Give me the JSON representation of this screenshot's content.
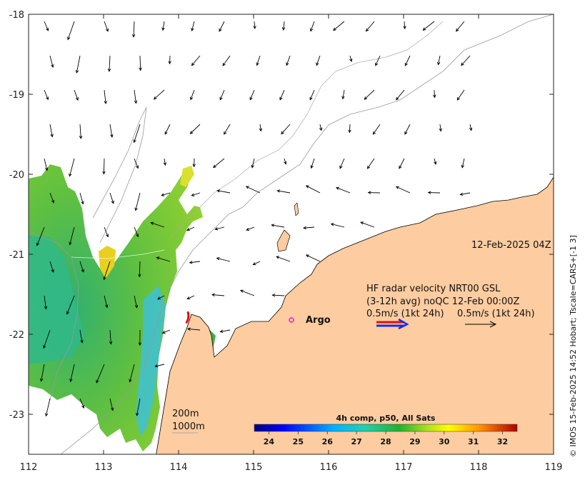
{
  "map": {
    "timestamp": "12-Feb-2025 04Z",
    "credit": "© IMOS 15-Feb-2025 14:52 Hobart; Tscale=CARS+[-1 3]",
    "x_axis": {
      "range": [
        112,
        119
      ],
      "ticks": [
        "112",
        "113",
        "114",
        "115",
        "116",
        "117",
        "118",
        "119"
      ]
    },
    "y_axis": {
      "range": [
        -23.5,
        -18
      ],
      "ticks": [
        "-18",
        "-19",
        "-20",
        "-21",
        "-22",
        "-23"
      ]
    },
    "legend": {
      "line1": "HF radar velocity  NRT00 GSL",
      "line2": "(3-12h avg) noQC 12-Feb 00:00Z",
      "scale_left": "0.5m/s (1kt 24h)",
      "scale_right": "0.5m/s (1kt 24h)"
    },
    "argo_label": "Argo",
    "bathymetry": {
      "label_200": "200m",
      "label_1000": "1000m"
    },
    "colorbar": {
      "title": "4h comp, p50, All Sats",
      "ticks": [
        "24",
        "25",
        "26",
        "27",
        "28",
        "29",
        "30",
        "31",
        "32"
      ],
      "range": [
        23.5,
        32.5
      ]
    },
    "colors": {
      "land": "#fdcca0",
      "radar_red": "#e01010",
      "radar_blue": "#1a2ee0",
      "argo": "#e020e0"
    }
  }
}
